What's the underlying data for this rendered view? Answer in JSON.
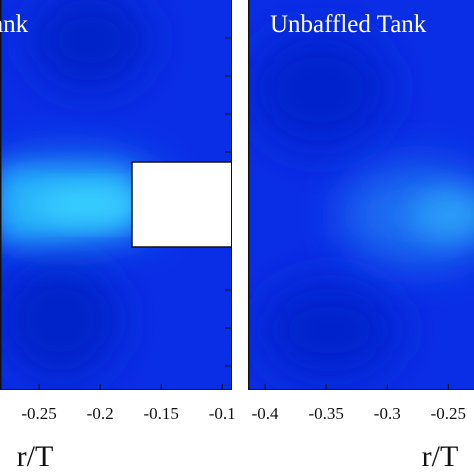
{
  "chart_data": [
    {
      "type": "contour",
      "title": "ank",
      "xlabel": "r/T",
      "xlim": [
        -0.282,
        -0.092
      ],
      "xticks": [
        -0.25,
        -0.2,
        -0.15,
        -0.1
      ]
    },
    {
      "type": "contour",
      "title": "Unbaffled Tank",
      "xlabel": "r/T",
      "xlim": [
        -0.414,
        -0.229
      ],
      "xticks": [
        -0.4,
        -0.35,
        -0.3,
        -0.25
      ]
    }
  ]
}
